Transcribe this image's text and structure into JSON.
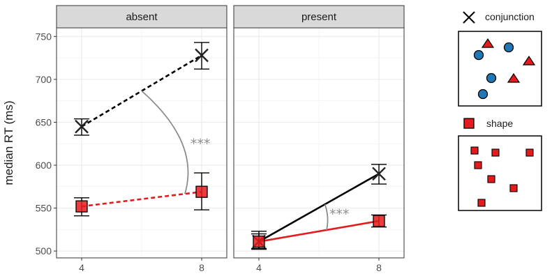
{
  "chart_data": {
    "type": "line",
    "ylabel": "median RT (ms)",
    "xlabel": "",
    "ylim": [
      492,
      760
    ],
    "yticks": [
      500,
      550,
      600,
      650,
      700,
      750
    ],
    "xticks": [
      4,
      8
    ],
    "grid": true,
    "facets": [
      {
        "label": "absent",
        "series": [
          {
            "key": "conjunction",
            "color": "#000000",
            "dashed": true,
            "marker": "x",
            "points": [
              {
                "x": 4,
                "y": 645,
                "err": [
                  635,
                  654
                ]
              },
              {
                "x": 8,
                "y": 728,
                "err": [
                  712,
                  743
                ]
              }
            ]
          },
          {
            "key": "shape",
            "color": "#e41a1c",
            "dashed": true,
            "marker": "square",
            "points": [
              {
                "x": 4,
                "y": 552,
                "err": [
                  541,
                  562
                ]
              },
              {
                "x": 8,
                "y": 569,
                "err": [
                  548,
                  591
                ]
              }
            ]
          }
        ],
        "annotation": "***"
      },
      {
        "label": "present",
        "series": [
          {
            "key": "conjunction",
            "color": "#000000",
            "dashed": false,
            "marker": "x",
            "points": [
              {
                "x": 4,
                "y": 511,
                "err": [
                  502,
                  523
                ]
              },
              {
                "x": 8,
                "y": 590,
                "err": [
                  578,
                  601
                ]
              }
            ]
          },
          {
            "key": "shape",
            "color": "#e41a1c",
            "dashed": false,
            "marker": "square",
            "points": [
              {
                "x": 4,
                "y": 511,
                "err": [
                  503,
                  520
                ]
              },
              {
                "x": 8,
                "y": 535,
                "err": [
                  528,
                  542
                ]
              }
            ]
          }
        ],
        "annotation": "***"
      }
    ],
    "legend": {
      "position": "right",
      "entries": [
        {
          "key": "conjunction",
          "label": "conjunction"
        },
        {
          "key": "shape",
          "label": "shape"
        }
      ]
    }
  },
  "colors": {
    "strip_bg": "#d9d9d9",
    "grid": "#ebebeb",
    "panel_border": "#333333",
    "red": "#e41a1c",
    "blue": "#1f78b4",
    "annotation_gray": "#8c8c8c"
  }
}
